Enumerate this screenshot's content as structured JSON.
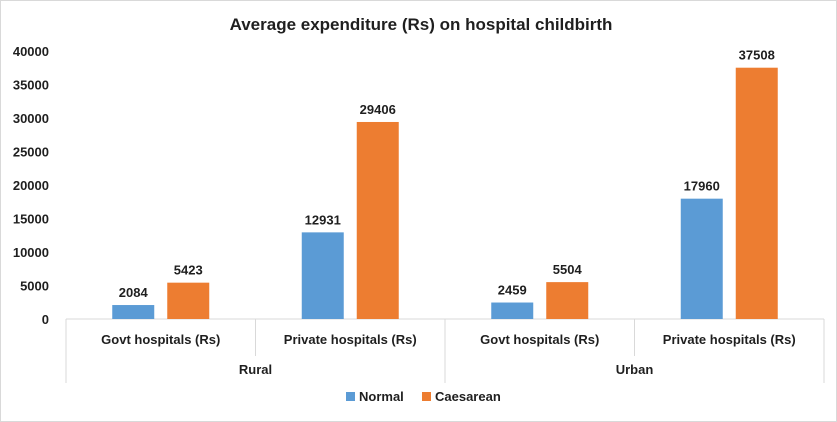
{
  "chart_data": {
    "type": "bar",
    "title": "Average expenditure (Rs) on hospital childbirth",
    "xlabel": "",
    "ylabel": "",
    "ylim": [
      0,
      40000
    ],
    "yticks": [
      "0",
      "5000",
      "10000",
      "15000",
      "20000",
      "25000",
      "30000",
      "35000",
      "40000"
    ],
    "categories": [
      "Govt hospitals (Rs)",
      "Private hospitals (Rs)",
      "Govt hospitals (Rs)",
      "Private hospitals (Rs)"
    ],
    "groups": [
      {
        "label": "Rural",
        "categories": [
          "Govt hospitals (Rs)",
          "Private hospitals (Rs)"
        ]
      },
      {
        "label": "Urban",
        "categories": [
          "Govt hospitals (Rs)",
          "Private hospitals (Rs)"
        ]
      }
    ],
    "series": [
      {
        "name": "Normal",
        "color": "#5b9bd5",
        "values": [
          2084,
          12931,
          2459,
          17960
        ]
      },
      {
        "name": "Caesarean",
        "color": "#ed7d31",
        "values": [
          5423,
          29406,
          5504,
          37508
        ]
      }
    ],
    "grid": false,
    "legend_position": "bottom"
  }
}
